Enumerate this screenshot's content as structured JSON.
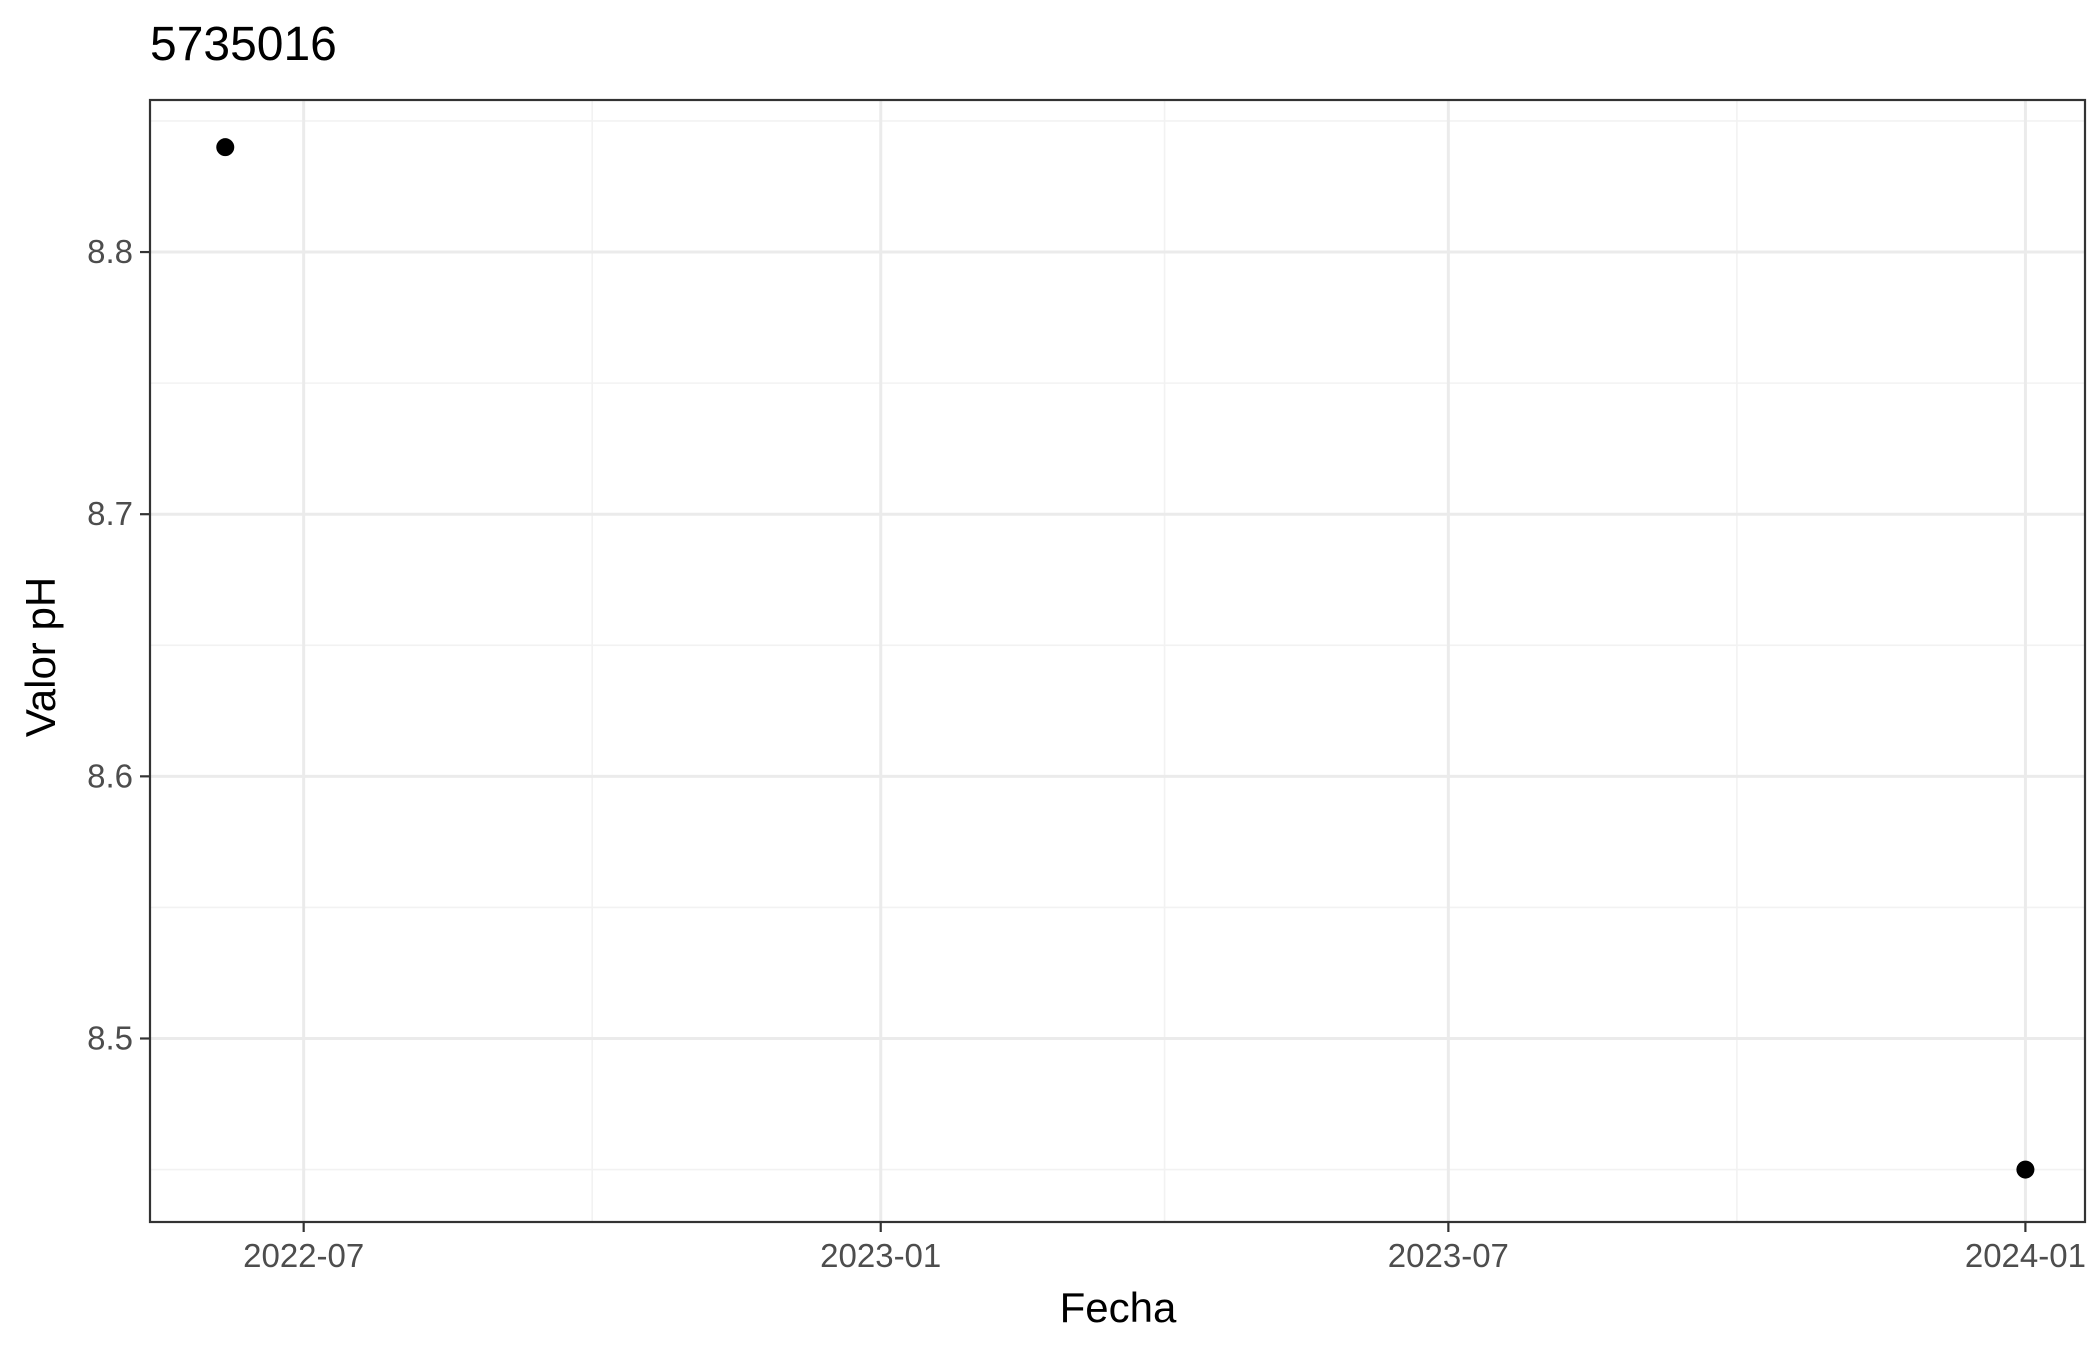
{
  "chart_data": {
    "type": "scatter",
    "title": "5735016",
    "xlabel": "Fecha",
    "ylabel": "Valor pH",
    "x_tick_labels": [
      "2022-07",
      "2023-01",
      "2023-07",
      "2024-01"
    ],
    "x_ticks": [
      "2022-07-01",
      "2023-01-01",
      "2023-07-01",
      "2024-01-01"
    ],
    "y_tick_labels": [
      "8.5",
      "8.6",
      "8.7",
      "8.8"
    ],
    "y_ticks": [
      8.5,
      8.6,
      8.7,
      8.8
    ],
    "xlim": [
      "2022-05-13",
      "2024-01-20"
    ],
    "ylim": [
      8.43,
      8.858
    ],
    "grid": true,
    "points": [
      {
        "x": "2022-06-06",
        "y": 8.84
      },
      {
        "x": "2024-01-01",
        "y": 8.45
      }
    ],
    "colors": {
      "point": "#000000",
      "panel_border": "#333333",
      "grid_major": "#ebebeb",
      "grid_minor": "#f2f2f2",
      "tick_text": "#4d4d4d"
    }
  }
}
